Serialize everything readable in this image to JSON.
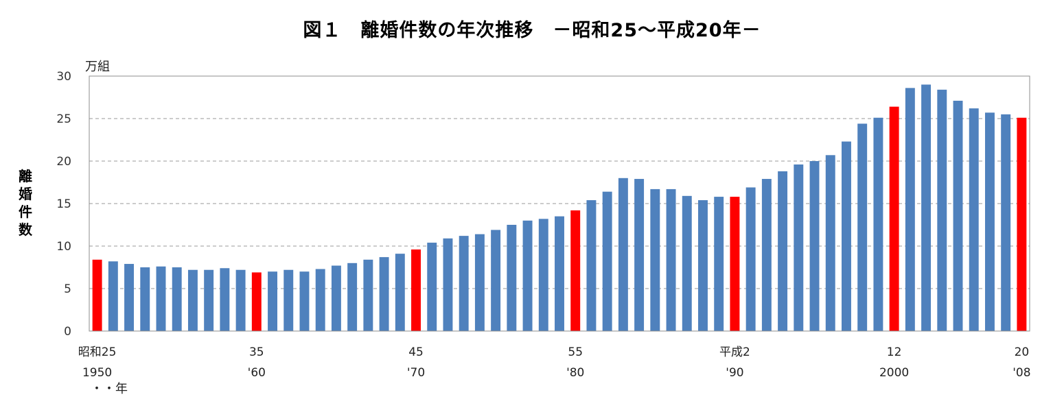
{
  "chart_data": {
    "type": "bar",
    "title": "図１　離婚件数の年次推移　－昭和25～平成20年－",
    "ylabel": "離婚件数",
    "yunit": "万組",
    "xunit": "・・年",
    "ylim": [
      0,
      30
    ],
    "yticks": [
      0,
      5,
      10,
      15,
      20,
      25,
      30
    ],
    "grid": true,
    "colors": {
      "normal": "#4F81BD",
      "highlight": "#FF0000"
    },
    "categories": [
      "1950",
      "1951",
      "1952",
      "1953",
      "1954",
      "1955",
      "1956",
      "1957",
      "1958",
      "1959",
      "1960",
      "1961",
      "1962",
      "1963",
      "1964",
      "1965",
      "1966",
      "1967",
      "1968",
      "1969",
      "1970",
      "1971",
      "1972",
      "1973",
      "1974",
      "1975",
      "1976",
      "1977",
      "1978",
      "1979",
      "1980",
      "1981",
      "1982",
      "1983",
      "1984",
      "1985",
      "1986",
      "1987",
      "1988",
      "1989",
      "1990",
      "1991",
      "1992",
      "1993",
      "1994",
      "1995",
      "1996",
      "1997",
      "1998",
      "1999",
      "2000",
      "2001",
      "2002",
      "2003",
      "2004",
      "2005",
      "2006",
      "2007",
      "2008"
    ],
    "values": [
      8.4,
      8.2,
      7.9,
      7.5,
      7.6,
      7.5,
      7.2,
      7.2,
      7.4,
      7.2,
      6.9,
      7.0,
      7.2,
      7.0,
      7.3,
      7.7,
      8.0,
      8.4,
      8.7,
      9.1,
      9.6,
      10.4,
      10.9,
      11.2,
      11.4,
      11.9,
      12.5,
      13.0,
      13.2,
      13.5,
      14.2,
      15.4,
      16.4,
      18.0,
      17.9,
      16.7,
      16.7,
      15.9,
      15.4,
      15.8,
      15.8,
      16.9,
      17.9,
      18.8,
      19.6,
      20.0,
      20.7,
      22.3,
      24.4,
      25.1,
      26.4,
      28.6,
      29.0,
      28.4,
      27.1,
      26.2,
      25.7,
      25.5,
      25.1
    ],
    "highlight_indices": [
      0,
      10,
      20,
      30,
      40,
      50,
      58
    ],
    "tick_labels": [
      {
        "index": 0,
        "line1": "昭和25",
        "line2": "1950"
      },
      {
        "index": 10,
        "line1": "35",
        "line2": "'60"
      },
      {
        "index": 20,
        "line1": "45",
        "line2": "'70"
      },
      {
        "index": 30,
        "line1": "55",
        "line2": "'80"
      },
      {
        "index": 40,
        "line1": "平成2",
        "line2": "'90"
      },
      {
        "index": 50,
        "line1": "12",
        "line2": "2000"
      },
      {
        "index": 58,
        "line1": "20",
        "line2": "'08"
      }
    ]
  }
}
